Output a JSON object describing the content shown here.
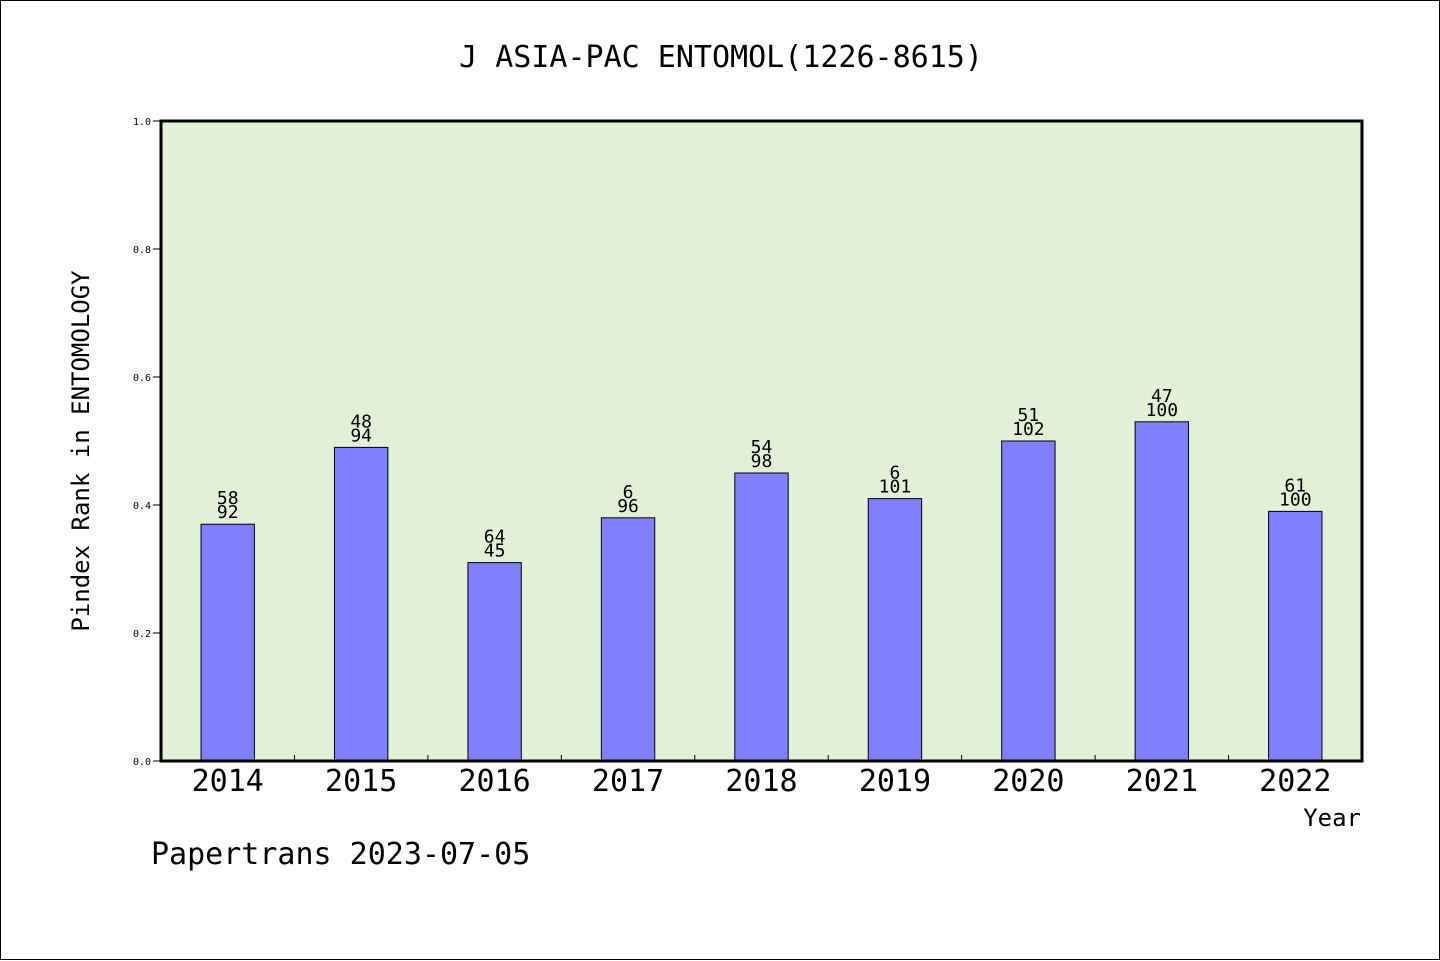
{
  "chart_data": {
    "type": "bar",
    "title": "J ASIA-PAC ENTOMOL(1226-8615)",
    "xlabel": "Year",
    "ylabel": "Pindex Rank in ENTOMOLOGY",
    "ylim": [
      0,
      1.0
    ],
    "yticks": [
      "0.0",
      "0.2",
      "0.4",
      "0.6",
      "0.8",
      "1.0"
    ],
    "categories": [
      "2014",
      "2015",
      "2016",
      "2017",
      "2018",
      "2019",
      "2020",
      "2021",
      "2022"
    ],
    "values": [
      0.37,
      0.49,
      0.31,
      0.38,
      0.45,
      0.41,
      0.5,
      0.53,
      0.39
    ],
    "labels_top": [
      "58",
      "48",
      "64",
      "6",
      "54",
      "6",
      "51",
      "47",
      "61"
    ],
    "labels_bottom": [
      "92",
      "94",
      "45",
      "96",
      "98",
      "101",
      "102",
      "100",
      "100"
    ],
    "grid": false,
    "colors": {
      "bar": "#8080ff",
      "plot_background": "#e2f0d6"
    }
  },
  "footer": "Papertrans 2023-07-05"
}
